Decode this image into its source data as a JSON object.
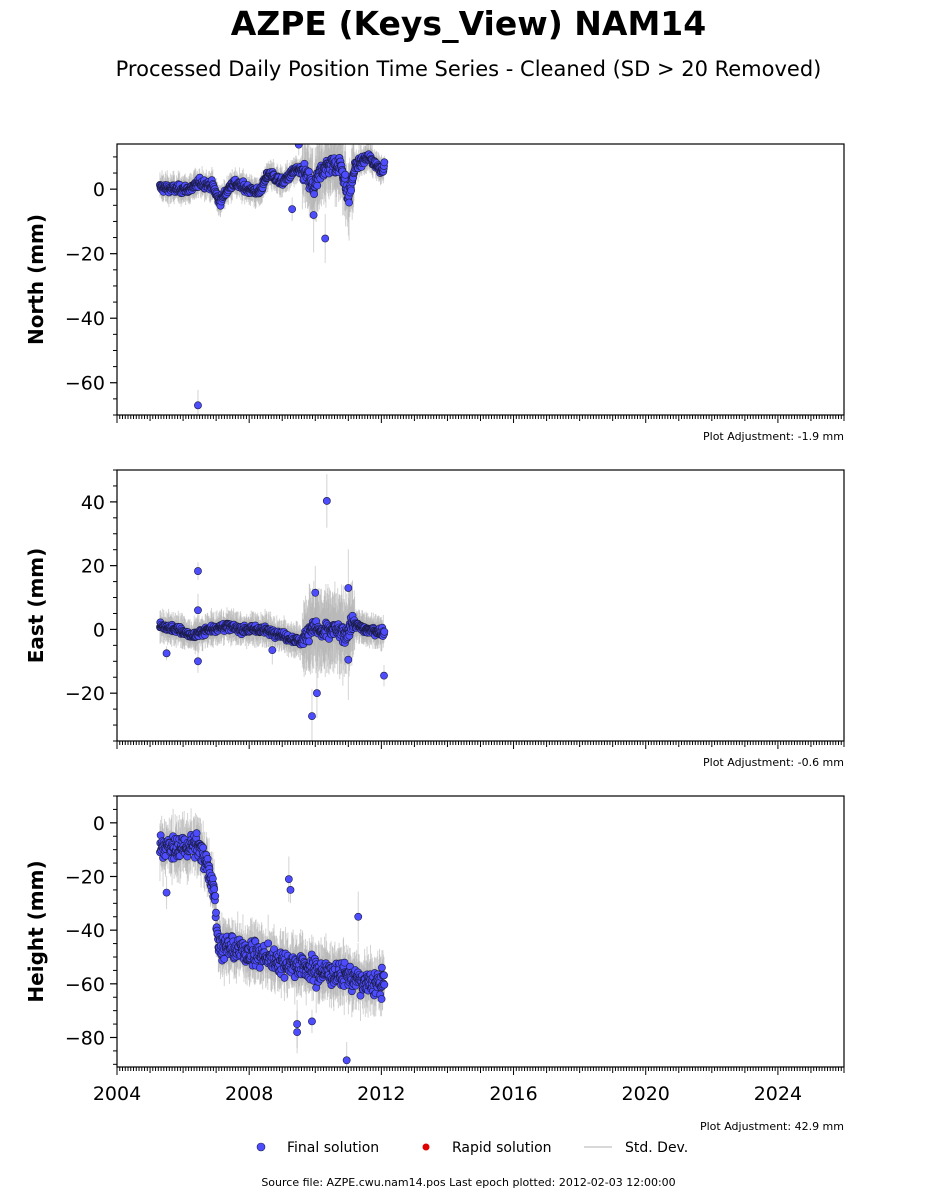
{
  "title": "AZPE (Keys_View) NAM14",
  "subtitle": "Processed Daily Position Time Series - Cleaned (SD > 20 Removed)",
  "footer": "Source file: AZPE.cwu.nam14.pos  Last epoch plotted: 2012-02-03 12:00:00",
  "legend": {
    "placement": "bottom-center",
    "items": [
      {
        "label": "Final solution",
        "color": "#4d4dff",
        "marker": "circle"
      },
      {
        "label": "Rapid solution",
        "color": "#e00000",
        "marker": "dot"
      },
      {
        "label": "Std. Dev.",
        "color": "#cccccc",
        "marker": "line"
      }
    ]
  },
  "chart_data": [
    {
      "type": "scatter",
      "ylabel": "North (mm)",
      "adjustment_text": "Plot Adjustment: -1.9 mm",
      "xlim": [
        2004.0,
        2026.0
      ],
      "ylim": [
        -70,
        14
      ],
      "yticks": [
        0,
        -20,
        -40,
        -60
      ],
      "ytick_labels": [
        "0",
        "−20",
        "−40",
        "−60"
      ],
      "x_range": [
        2005.3,
        2012.09
      ],
      "color": "#4d4dff",
      "errorbar_color": "#b0b0b0",
      "trend": [
        [
          2005.3,
          0.5
        ],
        [
          2005.8,
          0
        ],
        [
          2006.2,
          0
        ],
        [
          2006.5,
          2
        ],
        [
          2006.9,
          1
        ],
        [
          2007.1,
          -4
        ],
        [
          2007.5,
          2
        ],
        [
          2008.0,
          0
        ],
        [
          2008.3,
          -1
        ],
        [
          2008.6,
          5
        ],
        [
          2009.0,
          2
        ],
        [
          2009.4,
          6
        ],
        [
          2009.7,
          5
        ],
        [
          2009.95,
          0
        ],
        [
          2010.2,
          6
        ],
        [
          2010.5,
          8
        ],
        [
          2010.8,
          7
        ],
        [
          2011.0,
          -3
        ],
        [
          2011.2,
          7
        ],
        [
          2011.6,
          10
        ],
        [
          2012.0,
          6
        ],
        [
          2012.09,
          7
        ]
      ],
      "outliers": [
        [
          2006.45,
          -67
        ],
        [
          2009.5,
          13.8
        ],
        [
          2010.3,
          -15.3
        ],
        [
          2009.3,
          -6.2
        ],
        [
          2009.95,
          -8
        ]
      ]
    },
    {
      "type": "scatter",
      "ylabel": "East (mm)",
      "adjustment_text": "Plot Adjustment: -0.6 mm",
      "xlim": [
        2004.0,
        2026.0
      ],
      "ylim": [
        -35,
        50
      ],
      "yticks": [
        40,
        20,
        0,
        -20
      ],
      "ytick_labels": [
        "40",
        "20",
        "0",
        "−20"
      ],
      "x_range": [
        2005.3,
        2012.09
      ],
      "color": "#4d4dff",
      "errorbar_color": "#b0b0b0",
      "trend": [
        [
          2005.3,
          1
        ],
        [
          2005.8,
          0
        ],
        [
          2006.3,
          -2
        ],
        [
          2006.8,
          0
        ],
        [
          2007.3,
          1
        ],
        [
          2007.8,
          0
        ],
        [
          2008.3,
          0
        ],
        [
          2008.8,
          -1
        ],
        [
          2009.3,
          -3
        ],
        [
          2009.6,
          -4
        ],
        [
          2009.9,
          1
        ],
        [
          2010.2,
          -1
        ],
        [
          2010.6,
          0
        ],
        [
          2010.9,
          -2
        ],
        [
          2011.1,
          2
        ],
        [
          2011.5,
          0
        ],
        [
          2012.09,
          -1
        ]
      ],
      "outliers": [
        [
          2006.45,
          18.3
        ],
        [
          2006.45,
          -10
        ],
        [
          2006.45,
          6
        ],
        [
          2005.5,
          -7.5
        ],
        [
          2010.35,
          40.3
        ],
        [
          2009.9,
          -27.2
        ],
        [
          2010.05,
          -20
        ],
        [
          2010.0,
          11.5
        ],
        [
          2011.0,
          -9.5
        ],
        [
          2011.0,
          13
        ],
        [
          2012.08,
          -14.5
        ],
        [
          2008.7,
          -6.5
        ]
      ]
    },
    {
      "type": "scatter",
      "ylabel": "Height (mm)",
      "adjustment_text": "Plot Adjustment: 42.9 mm",
      "xlim": [
        2004.0,
        2026.0
      ],
      "ylim": [
        -91,
        10
      ],
      "yticks": [
        0,
        -20,
        -40,
        -60,
        -80
      ],
      "ytick_labels": [
        "0",
        "−20",
        "−40",
        "−60",
        "−80"
      ],
      "xticks": [
        2004,
        2008,
        2012,
        2016,
        2020,
        2024
      ],
      "xtick_labels": [
        "2004",
        "2008",
        "2012",
        "2016",
        "2020",
        "2024"
      ],
      "x_range": [
        2005.3,
        2012.09
      ],
      "color": "#4d4dff",
      "errorbar_color": "#b0b0b0",
      "trend": [
        [
          2005.3,
          -8
        ],
        [
          2005.7,
          -10
        ],
        [
          2006.0,
          -9
        ],
        [
          2006.4,
          -8
        ],
        [
          2006.7,
          -14
        ],
        [
          2006.95,
          -25
        ],
        [
          2007.05,
          -45
        ],
        [
          2007.5,
          -47
        ],
        [
          2008.0,
          -48
        ],
        [
          2008.5,
          -50
        ],
        [
          2009.0,
          -52
        ],
        [
          2009.5,
          -53
        ],
        [
          2010.0,
          -55
        ],
        [
          2010.5,
          -56
        ],
        [
          2011.0,
          -57
        ],
        [
          2011.5,
          -60
        ],
        [
          2012.09,
          -60
        ]
      ],
      "outliers": [
        [
          2005.5,
          -26
        ],
        [
          2009.2,
          -21
        ],
        [
          2009.25,
          -25
        ],
        [
          2009.45,
          -75
        ],
        [
          2009.45,
          -78
        ],
        [
          2009.9,
          -74
        ],
        [
          2010.95,
          -88.5
        ],
        [
          2011.3,
          -35
        ]
      ]
    }
  ]
}
